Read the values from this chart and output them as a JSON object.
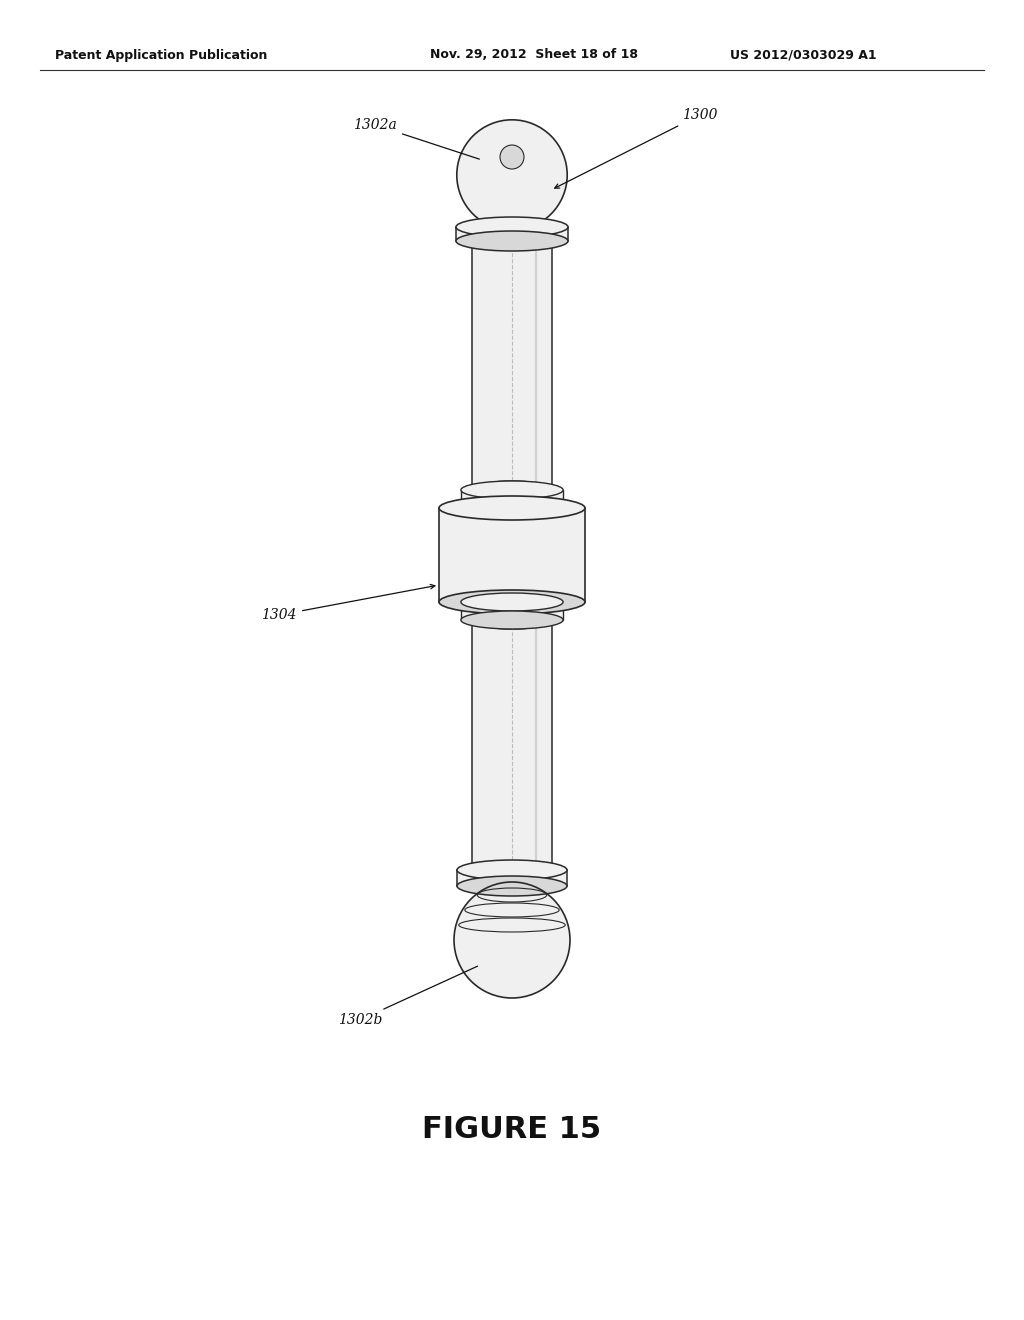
{
  "header_left": "Patent Application Publication",
  "header_mid": "Nov. 29, 2012  Sheet 18 of 18",
  "header_right": "US 2012/0303029 A1",
  "figure_caption": "FIGURE 15",
  "bg_color": "#ffffff",
  "line_color": "#2a2a2a",
  "label_1302a": "1302a",
  "label_1300": "1300",
  "label_1304": "1304",
  "label_1302b": "1302b",
  "shade_light": "#f0f0f0",
  "shade_mid": "#d8d8d8",
  "shade_dark": "#b0b0b0"
}
